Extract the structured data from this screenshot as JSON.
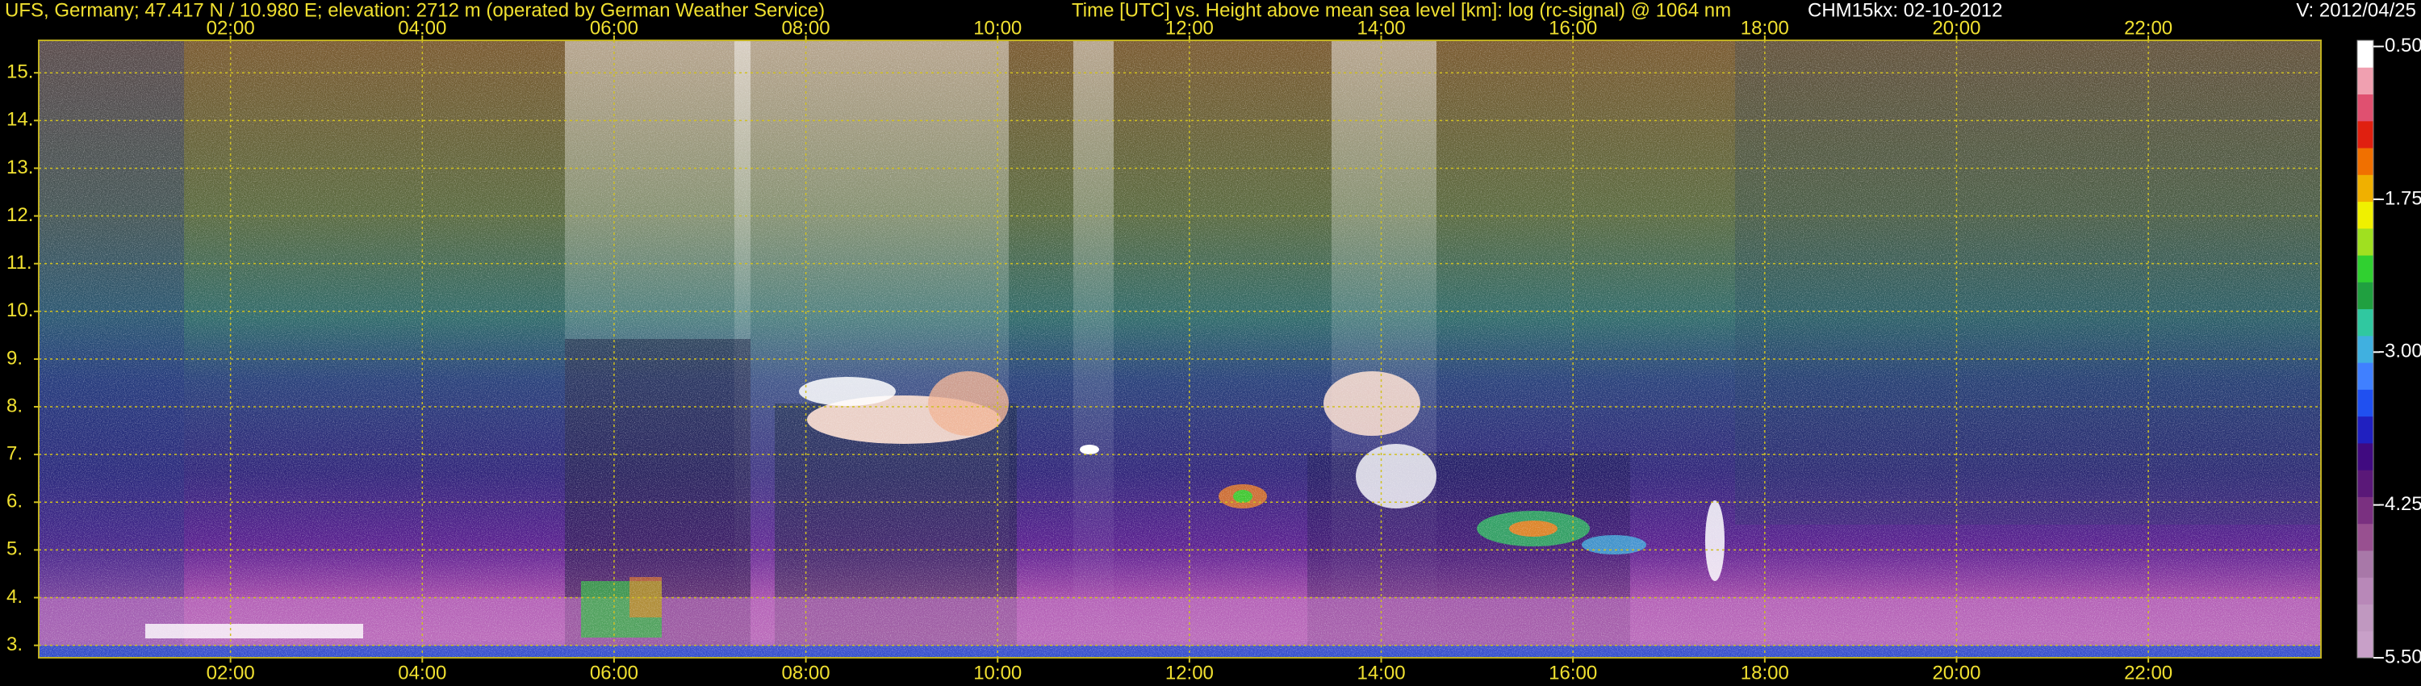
{
  "chart_data": {
    "type": "heatmap",
    "title": "UFS, Germany; 47.417 N / 10.980 E; elevation: 2712 m  (operated by German Weather Service)",
    "subtitle": "Time [UTC] vs. Height above mean sea level [km]: log (rc-signal) @ 1064 nm",
    "instrument": "CHM15kx: 02-10-2012",
    "version": "V: 2012/04/25",
    "xlim": [
      0,
      23.8
    ],
    "xticks": [
      {
        "value": 2,
        "label": "02:00"
      },
      {
        "value": 4,
        "label": "04:00"
      },
      {
        "value": 6,
        "label": "06:00"
      },
      {
        "value": 8,
        "label": "08:00"
      },
      {
        "value": 10,
        "label": "10:00"
      },
      {
        "value": 12,
        "label": "12:00"
      },
      {
        "value": 14,
        "label": "14:00"
      },
      {
        "value": 16,
        "label": "16:00"
      },
      {
        "value": 18,
        "label": "18:00"
      },
      {
        "value": 20,
        "label": "20:00"
      },
      {
        "value": 22,
        "label": "22:00"
      }
    ],
    "ylim": [
      2.74,
      15.68
    ],
    "yticks": [
      {
        "value": 3,
        "label": "3."
      },
      {
        "value": 4,
        "label": "4."
      },
      {
        "value": 5,
        "label": "5."
      },
      {
        "value": 6,
        "label": "6."
      },
      {
        "value": 7,
        "label": "7."
      },
      {
        "value": 8,
        "label": "8."
      },
      {
        "value": 9,
        "label": "9."
      },
      {
        "value": 10,
        "label": "10."
      },
      {
        "value": 11,
        "label": "11."
      },
      {
        "value": 12,
        "label": "12."
      },
      {
        "value": 13,
        "label": "13."
      },
      {
        "value": 14,
        "label": "14."
      },
      {
        "value": 15,
        "label": "15."
      }
    ],
    "clim": [
      -5.5,
      -0.45
    ],
    "cticks": [
      {
        "value": -0.5,
        "label": "-0.50"
      },
      {
        "value": -1.75,
        "label": "-1.75"
      },
      {
        "value": -3,
        "label": "-3.00"
      },
      {
        "value": -4.25,
        "label": "-4.25"
      },
      {
        "value": -5.5,
        "label": "-5.50"
      }
    ],
    "colormap": [
      "#c8a0c8",
      "#c098c0",
      "#b888b8",
      "#a878a8",
      "#985090",
      "#7a3080",
      "#5a1878",
      "#400a80",
      "#2020c0",
      "#2050f0",
      "#4080ff",
      "#40b0e0",
      "#30c8a0",
      "#20a040",
      "#30d030",
      "#a0e020",
      "#f0f000",
      "#f0b000",
      "#f07000",
      "#e02010",
      "#e05070",
      "#f0a0b0",
      "#ffffff"
    ],
    "grid": true,
    "grid_color": "#d0c020"
  }
}
